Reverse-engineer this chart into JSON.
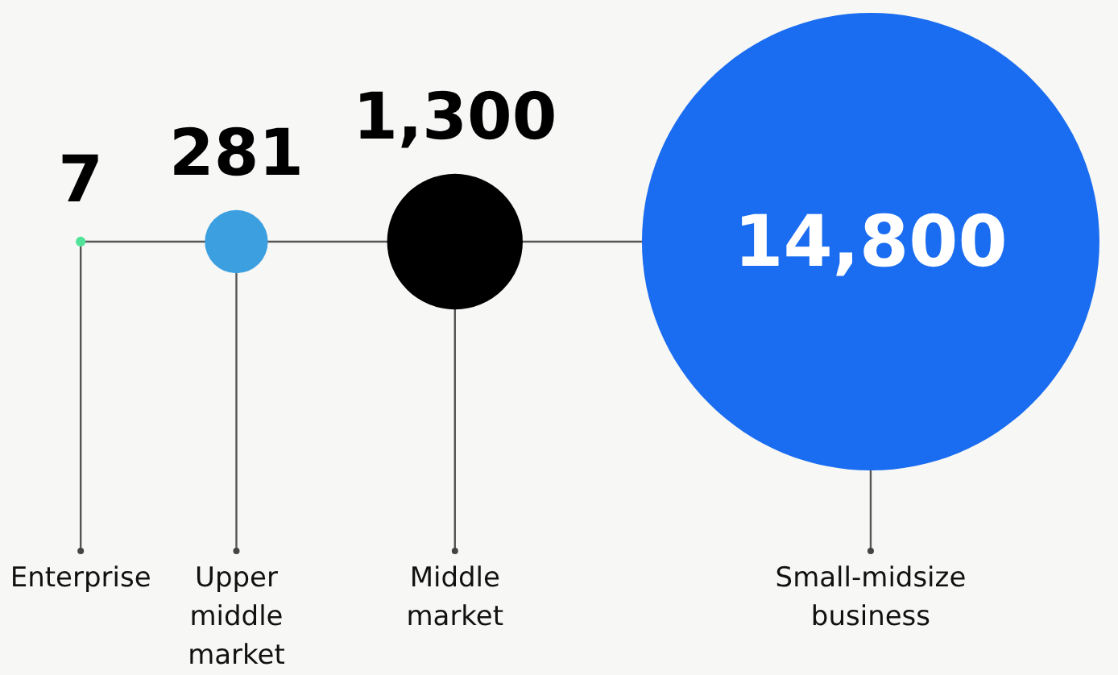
{
  "chart_data": {
    "type": "other",
    "categories": [
      "Enterprise",
      "Upper middle market",
      "Middle market",
      "Small-midsize business"
    ],
    "values": [
      7,
      281,
      1300,
      14800
    ],
    "value_labels": [
      "7",
      "281",
      "1,300",
      "14,800"
    ],
    "colors": [
      "#52e39a",
      "#3b9fe0",
      "#000000",
      "#1a6cf0"
    ]
  }
}
